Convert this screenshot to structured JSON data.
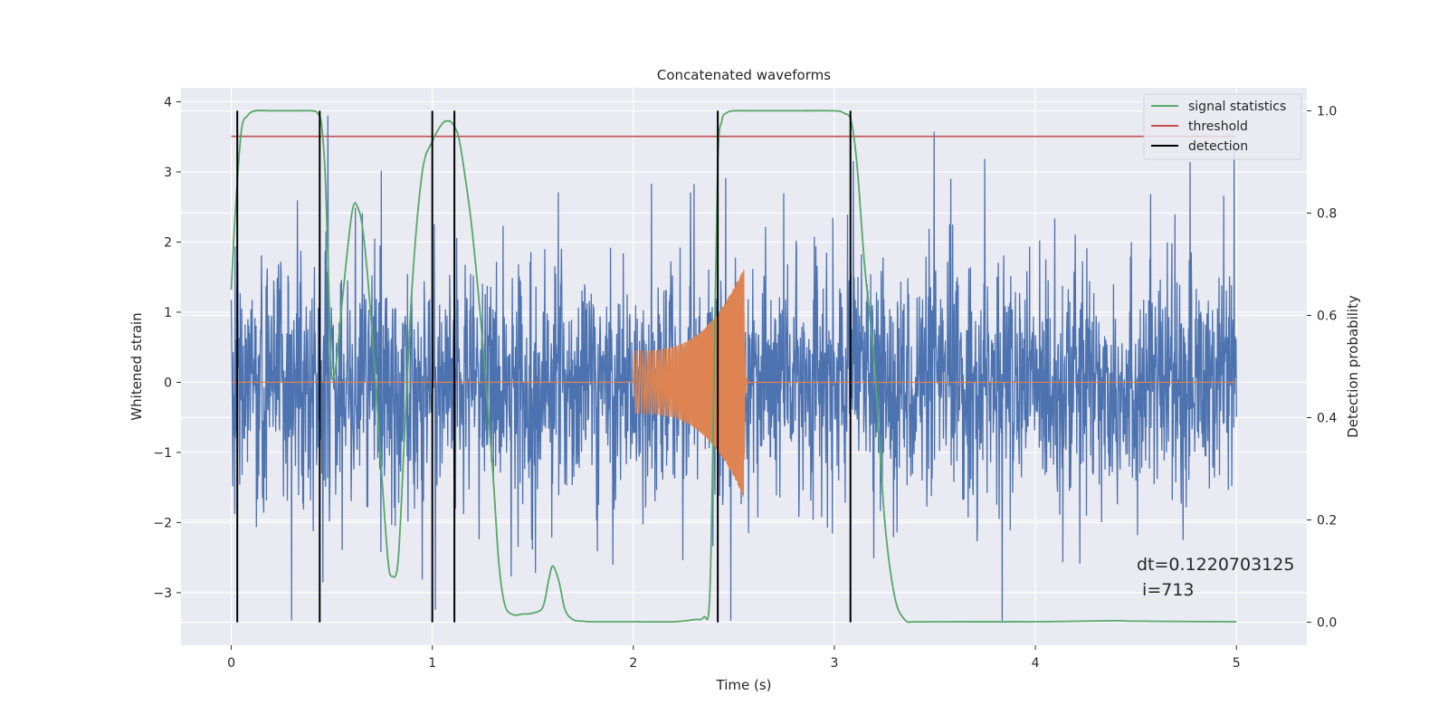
{
  "chart_data": {
    "type": "line",
    "title": "Concatenated waveforms",
    "xlabel": "Time (s)",
    "ylabel_left": "Whitened strain",
    "ylabel_right": "Detection probability",
    "xlim": [
      -0.25,
      5.35
    ],
    "ylim_left": [
      -3.75,
      4.2
    ],
    "ylim_right": [
      -0.045,
      1.045
    ],
    "x_ticks": [
      0,
      1,
      2,
      3,
      4,
      5
    ],
    "y_ticks_left": [
      -3,
      -2,
      -1,
      0,
      1,
      2,
      3,
      4
    ],
    "y_ticks_right": [
      0.0,
      0.2,
      0.4,
      0.6,
      0.8,
      1.0
    ],
    "x_tick_labels": [
      "0",
      "1",
      "2",
      "3",
      "4",
      "5"
    ],
    "y_tick_labels_left": [
      "−3",
      "−2",
      "−1",
      "0",
      "1",
      "2",
      "3",
      "4"
    ],
    "y_tick_labels_right": [
      "0.0",
      "0.2",
      "0.4",
      "0.6",
      "0.8",
      "1.0"
    ],
    "grid": true,
    "legend_position": "top-right",
    "colors": {
      "background": "#eaeaf2",
      "grid": "#ffffff",
      "strain": "#4c72b0",
      "injection": "#dd8452",
      "signal_statistics": "#55a868",
      "threshold": "#c44e52",
      "detection": "#000000"
    },
    "legend": [
      "signal statistics",
      "threshold",
      "detection"
    ],
    "series": [
      {
        "name": "",
        "axis": "left",
        "kind": "noise",
        "x_range": [
          0,
          5
        ],
        "peak_range": [
          -3.4,
          3.85
        ],
        "typical_amplitude": 1.3
      },
      {
        "name": "",
        "axis": "left",
        "kind": "chirp",
        "x_range": [
          2.0,
          2.55
        ],
        "amplitude_start": 0.45,
        "amplitude_peak": 1.65
      },
      {
        "name": "signal statistics",
        "axis": "right",
        "x": [
          0.0,
          0.02,
          0.05,
          0.08,
          0.12,
          0.2,
          0.3,
          0.4,
          0.43,
          0.45,
          0.47,
          0.49,
          0.5,
          0.52,
          0.55,
          0.6,
          0.63,
          0.66,
          0.7,
          0.75,
          0.78,
          0.8,
          0.83,
          0.86,
          0.9,
          0.95,
          1.0,
          1.05,
          1.08,
          1.1,
          1.13,
          1.16,
          1.2,
          1.25,
          1.3,
          1.33,
          1.36,
          1.4,
          1.45,
          1.5,
          1.55,
          1.58,
          1.6,
          1.63,
          1.66,
          1.7,
          1.75,
          1.8,
          2.0,
          2.2,
          2.3,
          2.35,
          2.38,
          2.4,
          2.42,
          2.44,
          2.46,
          2.5,
          2.6,
          2.8,
          3.0,
          3.05,
          3.08,
          3.1,
          3.12,
          3.15,
          3.2,
          3.25,
          3.3,
          3.35,
          3.4,
          3.5,
          4.0,
          4.4,
          4.5,
          5.0
        ],
        "y": [
          0.65,
          0.8,
          0.96,
          0.99,
          1.0,
          1.0,
          1.0,
          1.0,
          0.995,
          0.97,
          0.85,
          0.58,
          0.48,
          0.5,
          0.62,
          0.8,
          0.81,
          0.75,
          0.57,
          0.28,
          0.12,
          0.09,
          0.12,
          0.35,
          0.66,
          0.88,
          0.94,
          0.975,
          0.98,
          0.975,
          0.95,
          0.88,
          0.76,
          0.55,
          0.3,
          0.12,
          0.035,
          0.015,
          0.016,
          0.018,
          0.03,
          0.085,
          0.11,
          0.08,
          0.025,
          0.005,
          0.002,
          0.001,
          0.001,
          0.001,
          0.005,
          0.01,
          0.05,
          0.45,
          0.9,
          0.98,
          0.995,
          1.0,
          1.0,
          1.0,
          1.0,
          0.995,
          0.985,
          0.94,
          0.86,
          0.7,
          0.5,
          0.2,
          0.05,
          0.005,
          0.001,
          0.001,
          0.001,
          0.003,
          0.002,
          0.001
        ]
      },
      {
        "name": "threshold",
        "axis": "right",
        "x": [
          0,
          5
        ],
        "y": [
          0.95,
          0.95
        ]
      }
    ],
    "detections": [
      0.03,
      0.44,
      1.0,
      1.11,
      2.42,
      3.08
    ],
    "annotation": {
      "line1": "dt=0.1220703125",
      "line2": " i=713"
    }
  }
}
